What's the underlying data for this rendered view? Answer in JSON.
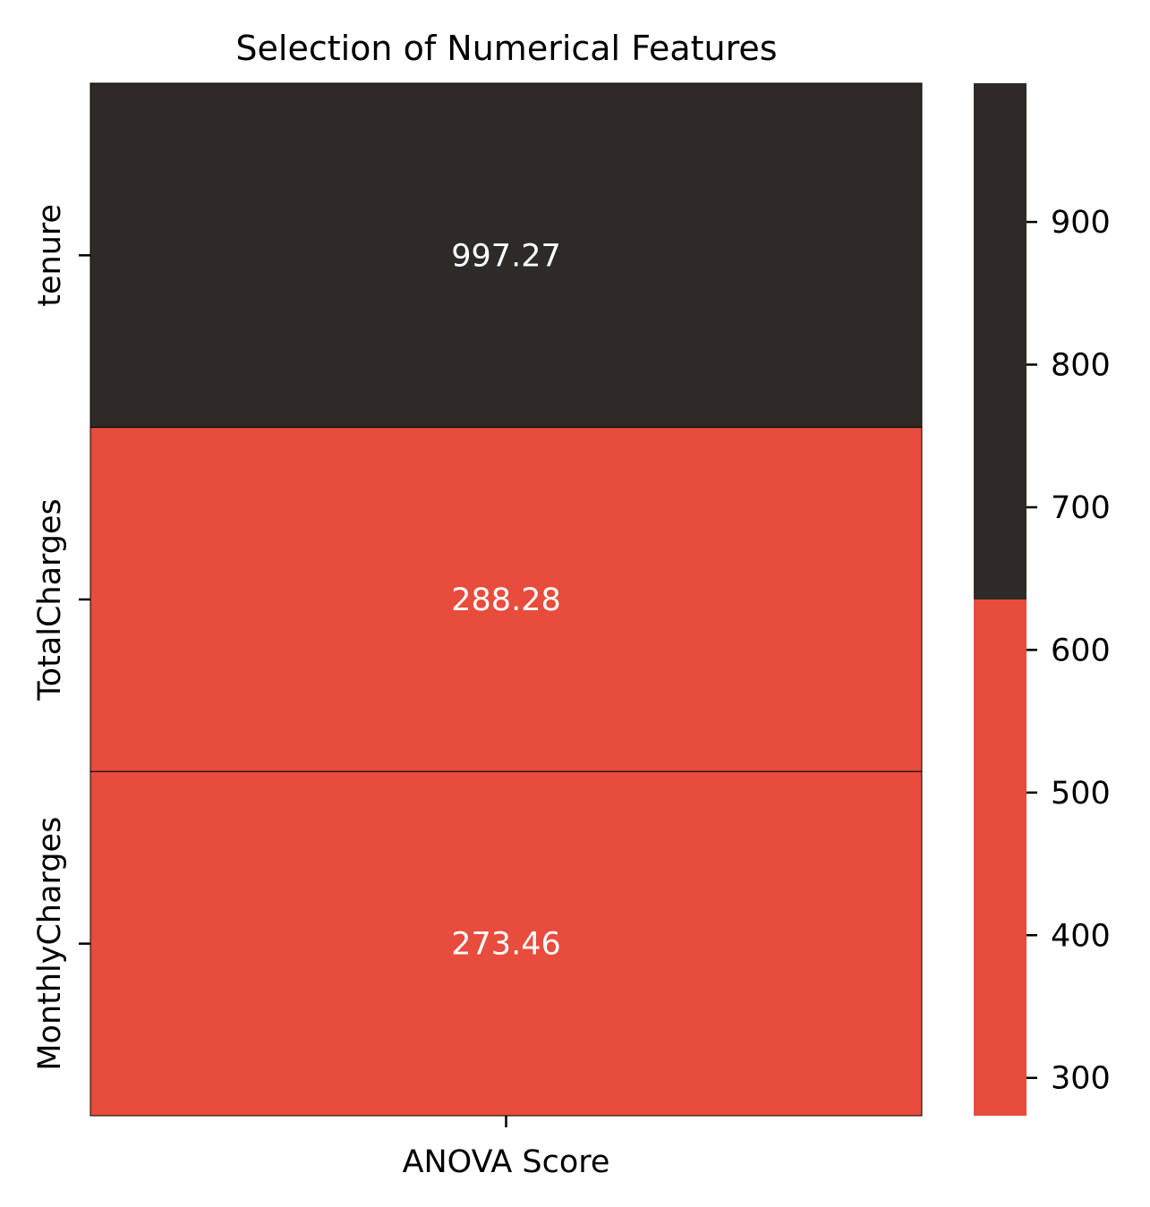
{
  "chart_data": {
    "type": "heatmap",
    "title": "Selection of Numerical Features",
    "rows": [
      "tenure",
      "TotalCharges",
      "MonthlyCharges"
    ],
    "columns": [
      "ANOVA Score"
    ],
    "values": [
      [
        997.27
      ],
      [
        288.28
      ],
      [
        273.46
      ]
    ],
    "value_labels": [
      "997.27",
      "288.28",
      "273.46"
    ],
    "colorbar": {
      "range": [
        273.46,
        997.27
      ],
      "ticks": [
        300,
        400,
        500,
        600,
        700,
        800,
        900
      ],
      "tick_labels": [
        "300",
        "400",
        "500",
        "600",
        "700",
        "800",
        "900"
      ],
      "threshold": 635.37
    },
    "colors": {
      "low": "#e74c3c",
      "high": "#2e2a27",
      "cell_text": "#ffffff",
      "cell_border": "#000000"
    },
    "grid": false
  }
}
